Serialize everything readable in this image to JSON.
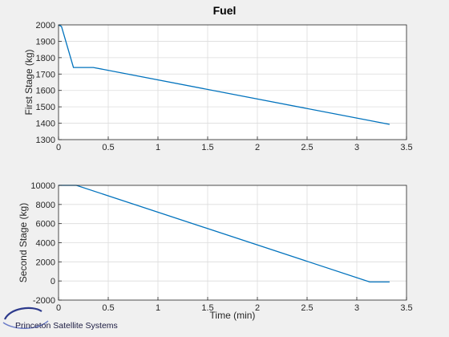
{
  "figure": {
    "title": "Fuel"
  },
  "chart_data": [
    {
      "type": "line",
      "title": "Fuel",
      "xlabel": "",
      "ylabel": "First Stage (kg)",
      "xlim": [
        0,
        3.5
      ],
      "ylim": [
        1300,
        2000
      ],
      "xticks": [
        "0",
        "0.5",
        "1",
        "1.5",
        "2",
        "2.5",
        "3",
        "3.5"
      ],
      "yticks": [
        "1300",
        "1400",
        "1500",
        "1600",
        "1700",
        "1800",
        "1900",
        "2000"
      ],
      "grid": true,
      "series": [
        {
          "color": "#0072bd",
          "x": [
            0,
            0.03,
            0.15,
            0.35,
            3.33
          ],
          "y": [
            2000,
            1990,
            1740,
            1740,
            1393
          ]
        }
      ]
    },
    {
      "type": "line",
      "title": "",
      "xlabel": "Time (min)",
      "ylabel": "Second Stage (kg)",
      "xlim": [
        0,
        3.5
      ],
      "ylim": [
        -2000,
        10000
      ],
      "xticks": [
        "0",
        "0.5",
        "1",
        "1.5",
        "2",
        "2.5",
        "3",
        "3.5"
      ],
      "yticks": [
        "-2000",
        "0",
        "2000",
        "4000",
        "6000",
        "8000",
        "10000"
      ],
      "grid": true,
      "series": [
        {
          "color": "#0072bd",
          "x": [
            0,
            0.18,
            3.13,
            3.33
          ],
          "y": [
            10000,
            10000,
            -100,
            -100
          ]
        }
      ]
    }
  ],
  "footer": {
    "logo_text": "Princeton Satellite Systems"
  }
}
